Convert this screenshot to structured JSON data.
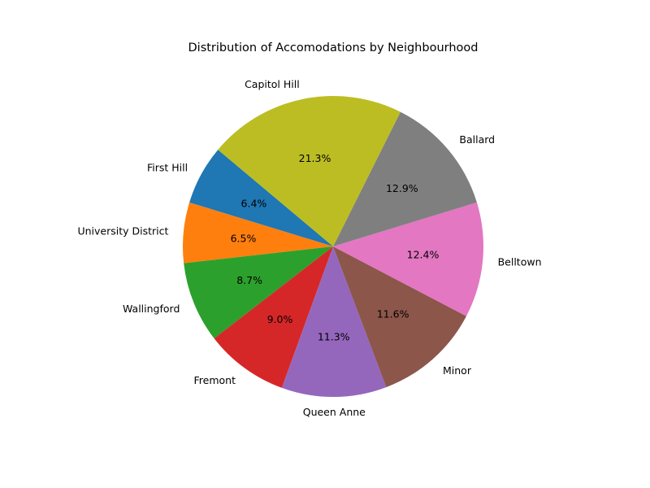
{
  "chart_data": {
    "type": "pie",
    "title": "Distribution of Accomodations by Neighbourhood",
    "categories": [
      "First Hill",
      "University District",
      "Wallingford",
      "Fremont",
      "Queen Anne",
      "Minor",
      "Belltown",
      "Ballard",
      "Capitol Hill"
    ],
    "values": [
      6.4,
      6.5,
      8.7,
      9.0,
      11.3,
      11.6,
      12.4,
      12.9,
      21.3
    ],
    "percent_labels": [
      "6.4%",
      "6.5%",
      "8.7%",
      "9.0%",
      "11.3%",
      "11.6%",
      "12.4%",
      "12.9%",
      "21.3%"
    ],
    "colors": [
      "#1f77b4",
      "#ff7f0e",
      "#2ca02c",
      "#d62728",
      "#9467bd",
      "#8c564b",
      "#e377c2",
      "#7f7f7f",
      "#bcbd22"
    ],
    "start_angle_deg": 140,
    "direction": "counterclockwise",
    "legend": "none"
  }
}
